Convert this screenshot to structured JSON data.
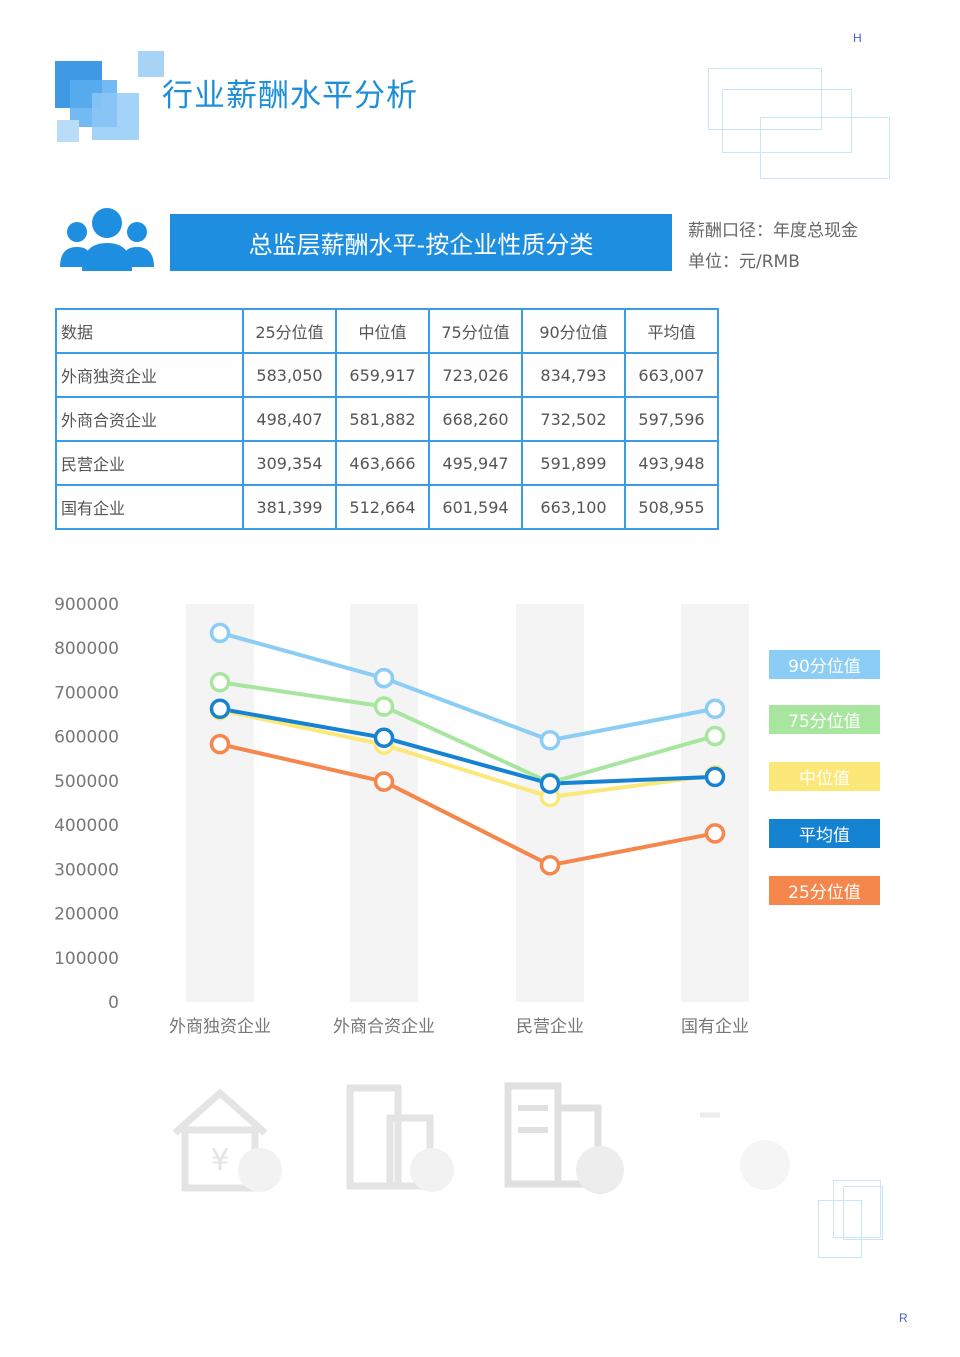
{
  "corners": {
    "top_right": "H",
    "bottom_right": "R"
  },
  "page_title": "行业薪酬水平分析",
  "section": {
    "banner_title": "总监层薪酬水平-按企业性质分类",
    "note_line1": "薪酬口径：年度总现金",
    "note_line2": "单位：元/RMB"
  },
  "table": {
    "headers": [
      "数据",
      "25分位值",
      "中位值",
      "75分位值",
      "90分位值",
      "平均值"
    ],
    "rows": [
      [
        "外商独资企业",
        "583,050",
        "659,917",
        "723,026",
        "834,793",
        "663,007"
      ],
      [
        "外商合资企业",
        "498,407",
        "581,882",
        "668,260",
        "732,502",
        "597,596"
      ],
      [
        "民营企业",
        "309,354",
        "463,666",
        "495,947",
        "591,899",
        "493,948"
      ],
      [
        "国有企业",
        "381,399",
        "512,664",
        "601,594",
        "663,100",
        "508,955"
      ]
    ]
  },
  "chart_data": {
    "type": "line",
    "categories": [
      "外商独资企业",
      "外商合资企业",
      "民营企业",
      "国有企业"
    ],
    "ylim": [
      0,
      900000
    ],
    "yticks": [
      "900000",
      "800000",
      "700000",
      "600000",
      "500000",
      "400000",
      "300000",
      "200000",
      "100000",
      "0"
    ],
    "legend_position": "right",
    "series": [
      {
        "name": "90分位值",
        "color": "#8ccdf6",
        "values": [
          834793,
          732502,
          591899,
          663100
        ]
      },
      {
        "name": "75分位值",
        "color": "#a8e6a0",
        "values": [
          723026,
          668260,
          495947,
          601594
        ]
      },
      {
        "name": "中位值",
        "color": "#fbe879",
        "values": [
          659917,
          581882,
          463666,
          512664
        ]
      },
      {
        "name": "平均值",
        "color": "#1683d2",
        "values": [
          663007,
          597596,
          493948,
          508955
        ]
      },
      {
        "name": "25分位值",
        "color": "#f5874c",
        "values": [
          583050,
          498407,
          309354,
          381399
        ]
      }
    ]
  },
  "bottom_icons": [
    "house-yuan-icon",
    "building-coin-icon",
    "office-he-icon",
    "state-guo-icon"
  ]
}
